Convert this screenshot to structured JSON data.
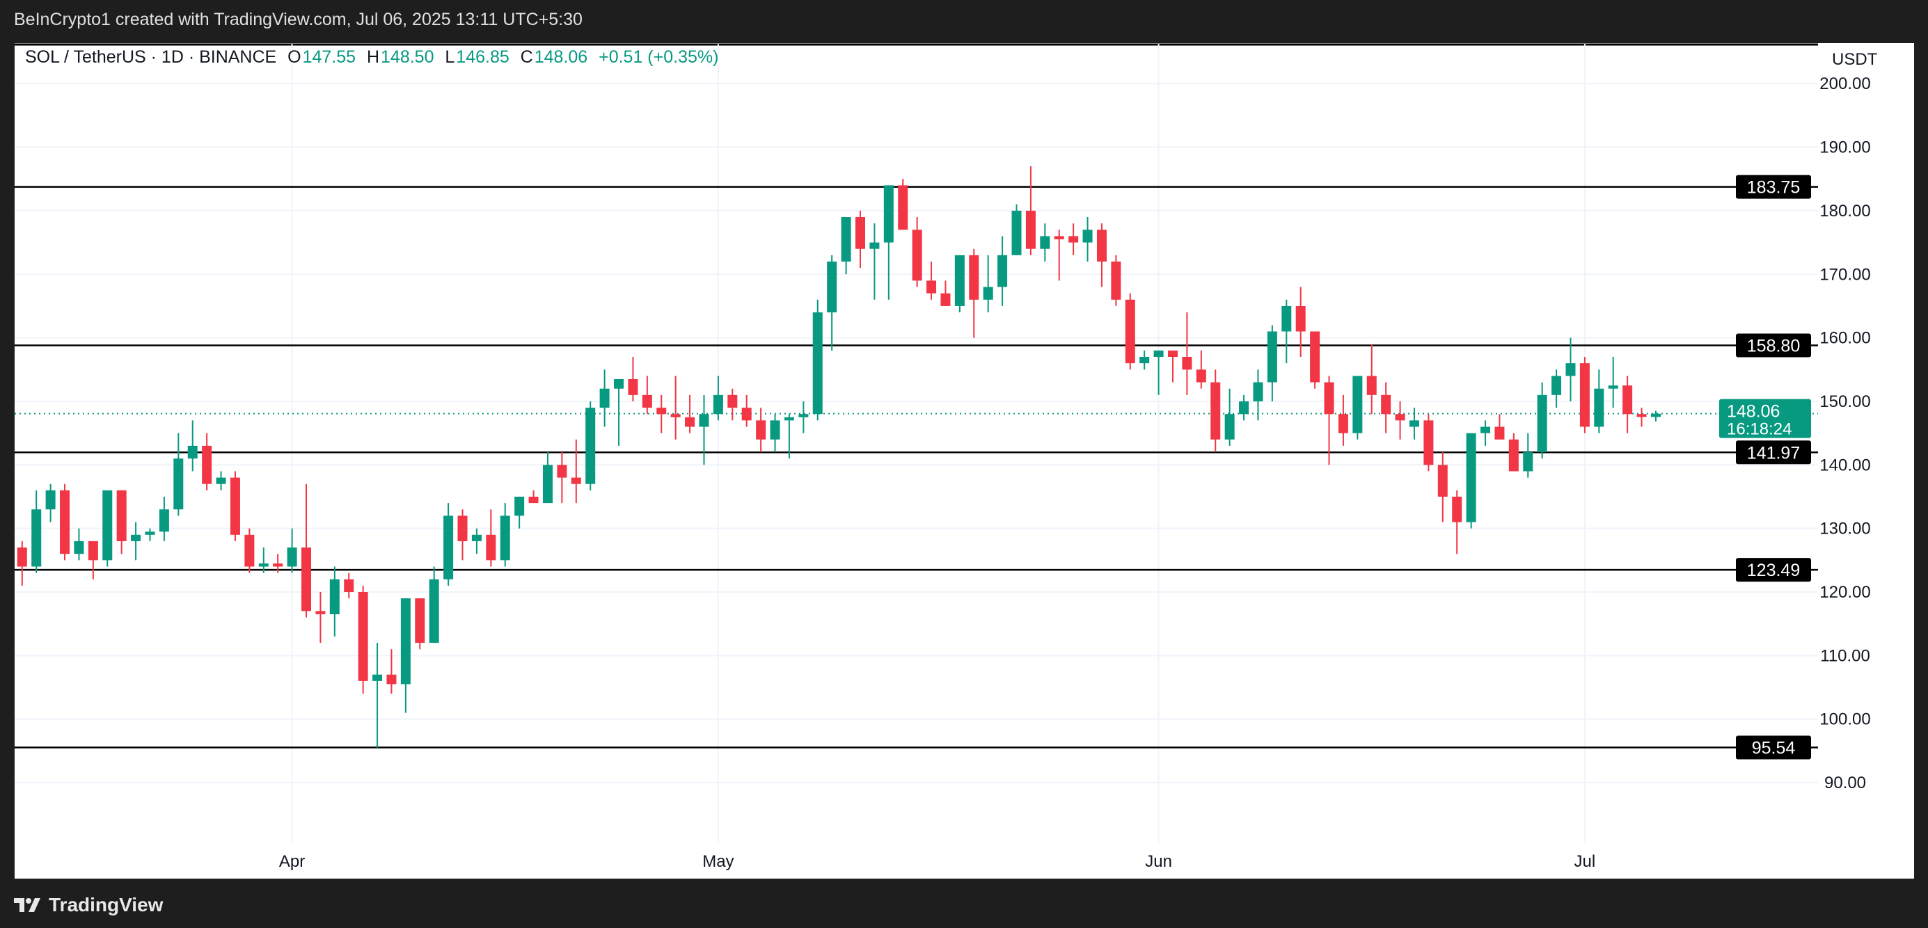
{
  "header": {
    "credit": "BeInCrypto1 created with TradingView.com, Jul 06, 2025 13:11 UTC+5:30"
  },
  "legend": {
    "symbol": "SOL / TetherUS · 1D · BINANCE",
    "o_label": "O",
    "o": "147.55",
    "h_label": "H",
    "h": "148.50",
    "l_label": "L",
    "l": "146.85",
    "c_label": "C",
    "c": "148.06",
    "change": "+0.51 (+0.35%)"
  },
  "axis_unit": "USDT",
  "footer": {
    "brand": "TradingView",
    "logo_icon": "tradingview-logo-icon"
  },
  "colors": {
    "up": "#089981",
    "down": "#f23645",
    "level": "#000000",
    "grid": "#f0f3fa"
  },
  "chart_data": {
    "type": "candlestick",
    "ylim": [
      84,
      204
    ],
    "y_ticks": [
      "200.00",
      "190.00",
      "180.00",
      "170.00",
      "160.00",
      "150.00",
      "140.00",
      "130.00",
      "120.00",
      "110.00",
      "100.00",
      "90.00"
    ],
    "x_ticks": [
      {
        "label": "Apr",
        "date": "2025-04-01"
      },
      {
        "label": "May",
        "date": "2025-05-01"
      },
      {
        "label": "Jun",
        "date": "2025-06-01"
      },
      {
        "label": "Jul",
        "date": "2025-07-01"
      }
    ],
    "grid": true,
    "levels": [
      "183.75",
      "158.80",
      "141.97",
      "123.49",
      "95.54"
    ],
    "current_price": {
      "value": "148.06",
      "countdown": "16:18:24"
    },
    "candles_fields": [
      "date",
      "open",
      "high",
      "low",
      "close"
    ],
    "candles": [
      [
        "2025-03-13",
        127,
        128,
        121,
        124
      ],
      [
        "2025-03-14",
        124,
        136,
        123,
        133
      ],
      [
        "2025-03-15",
        133,
        137,
        131,
        136
      ],
      [
        "2025-03-16",
        136,
        137,
        125,
        126
      ],
      [
        "2025-03-17",
        126,
        130,
        125,
        128
      ],
      [
        "2025-03-18",
        128,
        128,
        122,
        125
      ],
      [
        "2025-03-19",
        125,
        136,
        124,
        136
      ],
      [
        "2025-03-20",
        136,
        136,
        126,
        128
      ],
      [
        "2025-03-21",
        128,
        131,
        125,
        129
      ],
      [
        "2025-03-22",
        129,
        130,
        128,
        129.5
      ],
      [
        "2025-03-23",
        129.5,
        135,
        128,
        133
      ],
      [
        "2025-03-24",
        133,
        145,
        132,
        141
      ],
      [
        "2025-03-25",
        141,
        147,
        139,
        143
      ],
      [
        "2025-03-26",
        143,
        145,
        136,
        137
      ],
      [
        "2025-03-27",
        137,
        139,
        136,
        138
      ],
      [
        "2025-03-28",
        138,
        139,
        128,
        129
      ],
      [
        "2025-03-29",
        129,
        130,
        123,
        124
      ],
      [
        "2025-03-30",
        124,
        127,
        123,
        124.5
      ],
      [
        "2025-03-31",
        124.5,
        126,
        123,
        124
      ],
      [
        "2025-04-01",
        124,
        130,
        123,
        127
      ],
      [
        "2025-04-02",
        127,
        137,
        116,
        117
      ],
      [
        "2025-04-03",
        117,
        120,
        112,
        116.5
      ],
      [
        "2025-04-04",
        116.5,
        124,
        113,
        122
      ],
      [
        "2025-04-05",
        122,
        123,
        119,
        120
      ],
      [
        "2025-04-06",
        120,
        121,
        104,
        106
      ],
      [
        "2025-04-07",
        106,
        112,
        95.5,
        107
      ],
      [
        "2025-04-08",
        107,
        111,
        104,
        105.5
      ],
      [
        "2025-04-09",
        105.5,
        119,
        101,
        119
      ],
      [
        "2025-04-10",
        119,
        119,
        111,
        112
      ],
      [
        "2025-04-11",
        112,
        124,
        112,
        122
      ],
      [
        "2025-04-12",
        122,
        134,
        121,
        132
      ],
      [
        "2025-04-13",
        132,
        133,
        125,
        128
      ],
      [
        "2025-04-14",
        128,
        130,
        126,
        129
      ],
      [
        "2025-04-15",
        129,
        133,
        124,
        125
      ],
      [
        "2025-04-16",
        125,
        134,
        124,
        132
      ],
      [
        "2025-04-17",
        132,
        135,
        130,
        135
      ],
      [
        "2025-04-18",
        135,
        136,
        134,
        134
      ],
      [
        "2025-04-19",
        134,
        142,
        134,
        140
      ],
      [
        "2025-04-20",
        140,
        142,
        134,
        138
      ],
      [
        "2025-04-21",
        138,
        144,
        134,
        137
      ],
      [
        "2025-04-22",
        137,
        150,
        136,
        149
      ],
      [
        "2025-04-23",
        149,
        155,
        146,
        152
      ],
      [
        "2025-04-24",
        152,
        153,
        143,
        153.5
      ],
      [
        "2025-04-25",
        153.5,
        157,
        150,
        151
      ],
      [
        "2025-04-26",
        151,
        154,
        148,
        149
      ],
      [
        "2025-04-27",
        149,
        151,
        145,
        148
      ],
      [
        "2025-04-28",
        148,
        154,
        144,
        147.5
      ],
      [
        "2025-04-29",
        147.5,
        151,
        145,
        146
      ],
      [
        "2025-04-30",
        146,
        151,
        140,
        148
      ],
      [
        "2025-05-01",
        148,
        154,
        147,
        151
      ],
      [
        "2025-05-02",
        151,
        152,
        147,
        149
      ],
      [
        "2025-05-03",
        149,
        151,
        146,
        147
      ],
      [
        "2025-05-04",
        147,
        149,
        142,
        144
      ],
      [
        "2025-05-05",
        144,
        148,
        142,
        147
      ],
      [
        "2025-05-06",
        147,
        148,
        141,
        147.5
      ],
      [
        "2025-05-07",
        147.5,
        150,
        145,
        148
      ],
      [
        "2025-05-08",
        148,
        166,
        147,
        164
      ],
      [
        "2025-05-09",
        164,
        173,
        158,
        172
      ],
      [
        "2025-05-10",
        172,
        179,
        170,
        179
      ],
      [
        "2025-05-11",
        179,
        180,
        171,
        174
      ],
      [
        "2025-05-12",
        174,
        178,
        166,
        175
      ],
      [
        "2025-05-13",
        175,
        184,
        166,
        184
      ],
      [
        "2025-05-14",
        184,
        185,
        177,
        177
      ],
      [
        "2025-05-15",
        177,
        179,
        168,
        169
      ],
      [
        "2025-05-16",
        169,
        172,
        166,
        167
      ],
      [
        "2025-05-17",
        167,
        169,
        165,
        165
      ],
      [
        "2025-05-18",
        165,
        173,
        164,
        173
      ],
      [
        "2025-05-19",
        173,
        174,
        160,
        166
      ],
      [
        "2025-05-20",
        166,
        173,
        164,
        168
      ],
      [
        "2025-05-21",
        168,
        176,
        165,
        173
      ],
      [
        "2025-05-22",
        173,
        181,
        173,
        180
      ],
      [
        "2025-05-23",
        180,
        187,
        173,
        174
      ],
      [
        "2025-05-24",
        174,
        178,
        172,
        176
      ],
      [
        "2025-05-25",
        176,
        177,
        169,
        175.5
      ],
      [
        "2025-05-26",
        176,
        178,
        173,
        175
      ],
      [
        "2025-05-27",
        175,
        179,
        172,
        177
      ],
      [
        "2025-05-28",
        177,
        178,
        168,
        172
      ],
      [
        "2025-05-29",
        172,
        173,
        165,
        166
      ],
      [
        "2025-05-30",
        166,
        167,
        155,
        156
      ],
      [
        "2025-05-31",
        156,
        158,
        155,
        157
      ],
      [
        "2025-06-01",
        157,
        158,
        151,
        158
      ],
      [
        "2025-06-02",
        158,
        158,
        153,
        157
      ],
      [
        "2025-06-03",
        157,
        164,
        151,
        155
      ],
      [
        "2025-06-04",
        155,
        158,
        152,
        153
      ],
      [
        "2025-06-05",
        153,
        155,
        142,
        144
      ],
      [
        "2025-06-06",
        144,
        152,
        143,
        148
      ],
      [
        "2025-06-07",
        148,
        151,
        147,
        150
      ],
      [
        "2025-06-08",
        150,
        155,
        147,
        153
      ],
      [
        "2025-06-09",
        153,
        162,
        150,
        161
      ],
      [
        "2025-06-10",
        161,
        166,
        156,
        165
      ],
      [
        "2025-06-11",
        165,
        168,
        157,
        161
      ],
      [
        "2025-06-12",
        161,
        161,
        152,
        153
      ],
      [
        "2025-06-13",
        153,
        154,
        140,
        148
      ],
      [
        "2025-06-14",
        148,
        151,
        143,
        145
      ],
      [
        "2025-06-15",
        145,
        154,
        144,
        154
      ],
      [
        "2025-06-16",
        154,
        159,
        148,
        151
      ],
      [
        "2025-06-17",
        151,
        153,
        145,
        148
      ],
      [
        "2025-06-18",
        148,
        150,
        144,
        147
      ],
      [
        "2025-06-19",
        146,
        149,
        144,
        147
      ],
      [
        "2025-06-20",
        147,
        148,
        139,
        140
      ],
      [
        "2025-06-21",
        140,
        142,
        131,
        135
      ],
      [
        "2025-06-22",
        135,
        136,
        126,
        131
      ],
      [
        "2025-06-23",
        131,
        145,
        130,
        145
      ],
      [
        "2025-06-24",
        145,
        147,
        143,
        146
      ],
      [
        "2025-06-25",
        146,
        148,
        144,
        144
      ],
      [
        "2025-06-26",
        144,
        145,
        139,
        139
      ],
      [
        "2025-06-27",
        139,
        145,
        138,
        142
      ],
      [
        "2025-06-28",
        142,
        153,
        141,
        151
      ],
      [
        "2025-06-29",
        151,
        155,
        149,
        154
      ],
      [
        "2025-06-30",
        154,
        160,
        150,
        156
      ],
      [
        "2025-07-01",
        156,
        157,
        145,
        146
      ],
      [
        "2025-07-02",
        146,
        155,
        145,
        152
      ],
      [
        "2025-07-03",
        152,
        157,
        149,
        152.5
      ],
      [
        "2025-07-04",
        152.5,
        154,
        145,
        148
      ],
      [
        "2025-07-05",
        148,
        149,
        146,
        147.55
      ],
      [
        "2025-07-06",
        147.55,
        148.5,
        146.85,
        148.06
      ]
    ]
  }
}
